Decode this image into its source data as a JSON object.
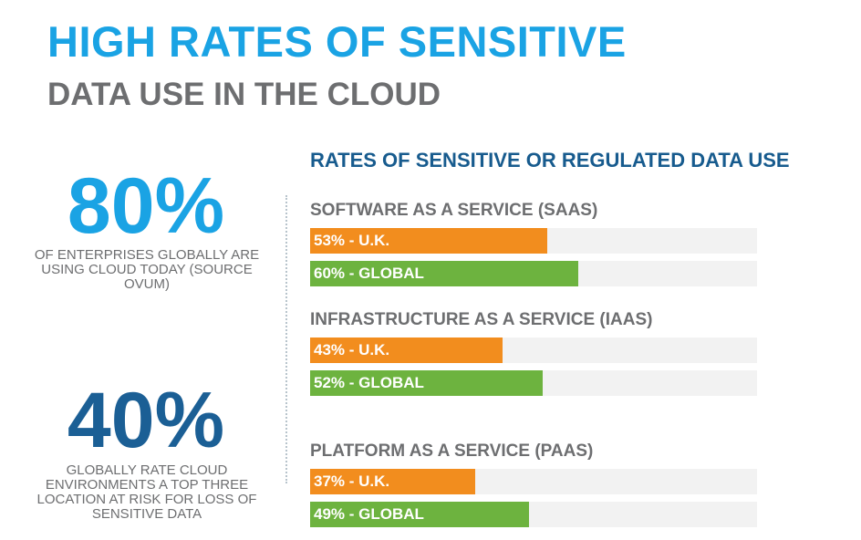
{
  "header": {
    "title": "HIGH RATES OF SENSITIVE",
    "subtitle": "DATA USE IN THE CLOUD"
  },
  "stats": [
    {
      "value": "80%",
      "text": "OF ENTERPRISES GLOBALLY ARE USING CLOUD  TODAY (SOURCE OVUM)"
    },
    {
      "value": "40%",
      "text": "GLOBALLY RATE CLOUD ENVIRONMENTS A TOP THREE LOCATION AT RISK FOR LOSS OF SENSITIVE DATA"
    }
  ],
  "colors": {
    "uk": "#f28d1e",
    "global": "#6db33f",
    "track": "#f2f2f2"
  },
  "chart_data": {
    "type": "bar",
    "orientation": "horizontal",
    "title": "RATES OF SENSITIVE OR REGULATED DATA USE",
    "xlim": [
      0,
      100
    ],
    "grid": false,
    "groups": [
      {
        "name": "SOFTWARE  AS A SERVICE (SAAS)",
        "bars": [
          {
            "series": "U.K.",
            "value": 53,
            "label": "53% - U.K."
          },
          {
            "series": "GLOBAL",
            "value": 60,
            "label": "60% - GLOBAL"
          }
        ]
      },
      {
        "name": "INFRASTRUCTURE  AS A SERVICE (IAAS)",
        "bars": [
          {
            "series": "U.K.",
            "value": 43,
            "label": "43% - U.K."
          },
          {
            "series": "GLOBAL",
            "value": 52,
            "label": "52% - GLOBAL"
          }
        ]
      },
      {
        "name": "PLATFORM AS A SERVICE (PAAS)",
        "bars": [
          {
            "series": "U.K.",
            "value": 37,
            "label": "37% - U.K."
          },
          {
            "series": "GLOBAL",
            "value": 49,
            "label": "49% - GLOBAL"
          }
        ]
      }
    ]
  }
}
